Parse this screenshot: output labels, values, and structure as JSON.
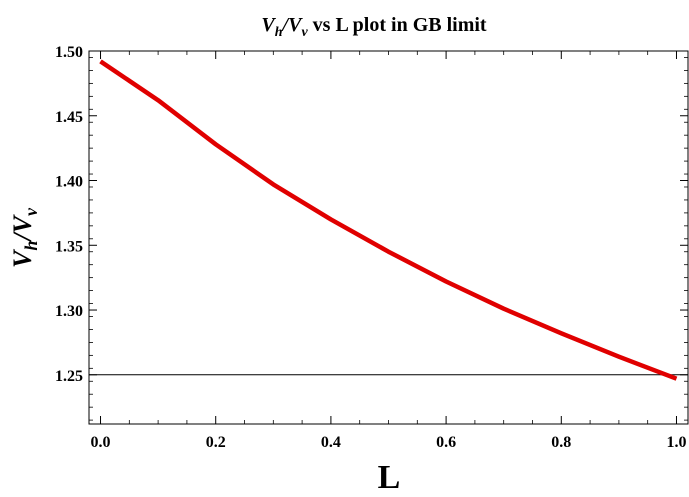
{
  "chart_data": {
    "type": "line",
    "title": {
      "v1": "V",
      "s1": "h",
      "slash": "/",
      "v2": "V",
      "s2": "v",
      "rest": " vs L plot in GB limit"
    },
    "xlabel": "L",
    "ylabel": {
      "v1": "V",
      "s1": "h",
      "slash": "/",
      "v2": "V",
      "s2": "v"
    },
    "xlim": [
      -0.02,
      1.02
    ],
    "ylim": [
      1.212,
      1.5
    ],
    "x_ticks": [
      0.0,
      0.2,
      0.4,
      0.6,
      0.8,
      1.0
    ],
    "x_tick_labels": [
      "0.0",
      "0.2",
      "0.4",
      "0.6",
      "0.8",
      "1.0"
    ],
    "y_ticks": [
      1.25,
      1.3,
      1.35,
      1.4,
      1.45,
      1.5
    ],
    "y_tick_labels": [
      "1.25",
      "1.30",
      "1.35",
      "1.40",
      "1.45",
      "1.50"
    ],
    "grid": false,
    "series": [
      {
        "color": "#e00000",
        "x": [
          0.0,
          0.1,
          0.2,
          0.3,
          0.4,
          0.5,
          0.6,
          0.7,
          0.8,
          0.9,
          1.0
        ],
        "y": [
          1.492,
          1.462,
          1.428,
          1.397,
          1.37,
          1.345,
          1.322,
          1.301,
          1.282,
          1.264,
          1.247
        ]
      }
    ],
    "reference_line": {
      "y": 1.25,
      "color": "#000000"
    }
  }
}
